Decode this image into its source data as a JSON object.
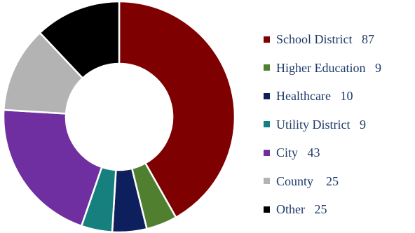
{
  "chart_data": {
    "type": "pie",
    "variant": "donut",
    "start": "12 o'clock",
    "direction": "clockwise",
    "legend_position": "right",
    "slices": [
      {
        "label": "School District",
        "value": 87,
        "color": "#7f0000"
      },
      {
        "label": "Higher Education",
        "value": 9,
        "color": "#4f7f2f"
      },
      {
        "label": "Healthcare",
        "value": 10,
        "color": "#0d1f5c"
      },
      {
        "label": "Utility District",
        "value": 9,
        "color": "#16807f"
      },
      {
        "label": "City",
        "value": 43,
        "color": "#6f2fa1"
      },
      {
        "label": "County",
        "value": 25,
        "color": "#b3b3b3"
      },
      {
        "label": "Other",
        "value": 25,
        "color": "#000000"
      }
    ],
    "legend": [
      {
        "text": "School District   87"
      },
      {
        "text": "Higher Education   9"
      },
      {
        "text": "Healthcare   10"
      },
      {
        "text": "Utility District   9"
      },
      {
        "text": "City   43"
      },
      {
        "text": "County    25"
      },
      {
        "text": "Other   25"
      }
    ]
  }
}
